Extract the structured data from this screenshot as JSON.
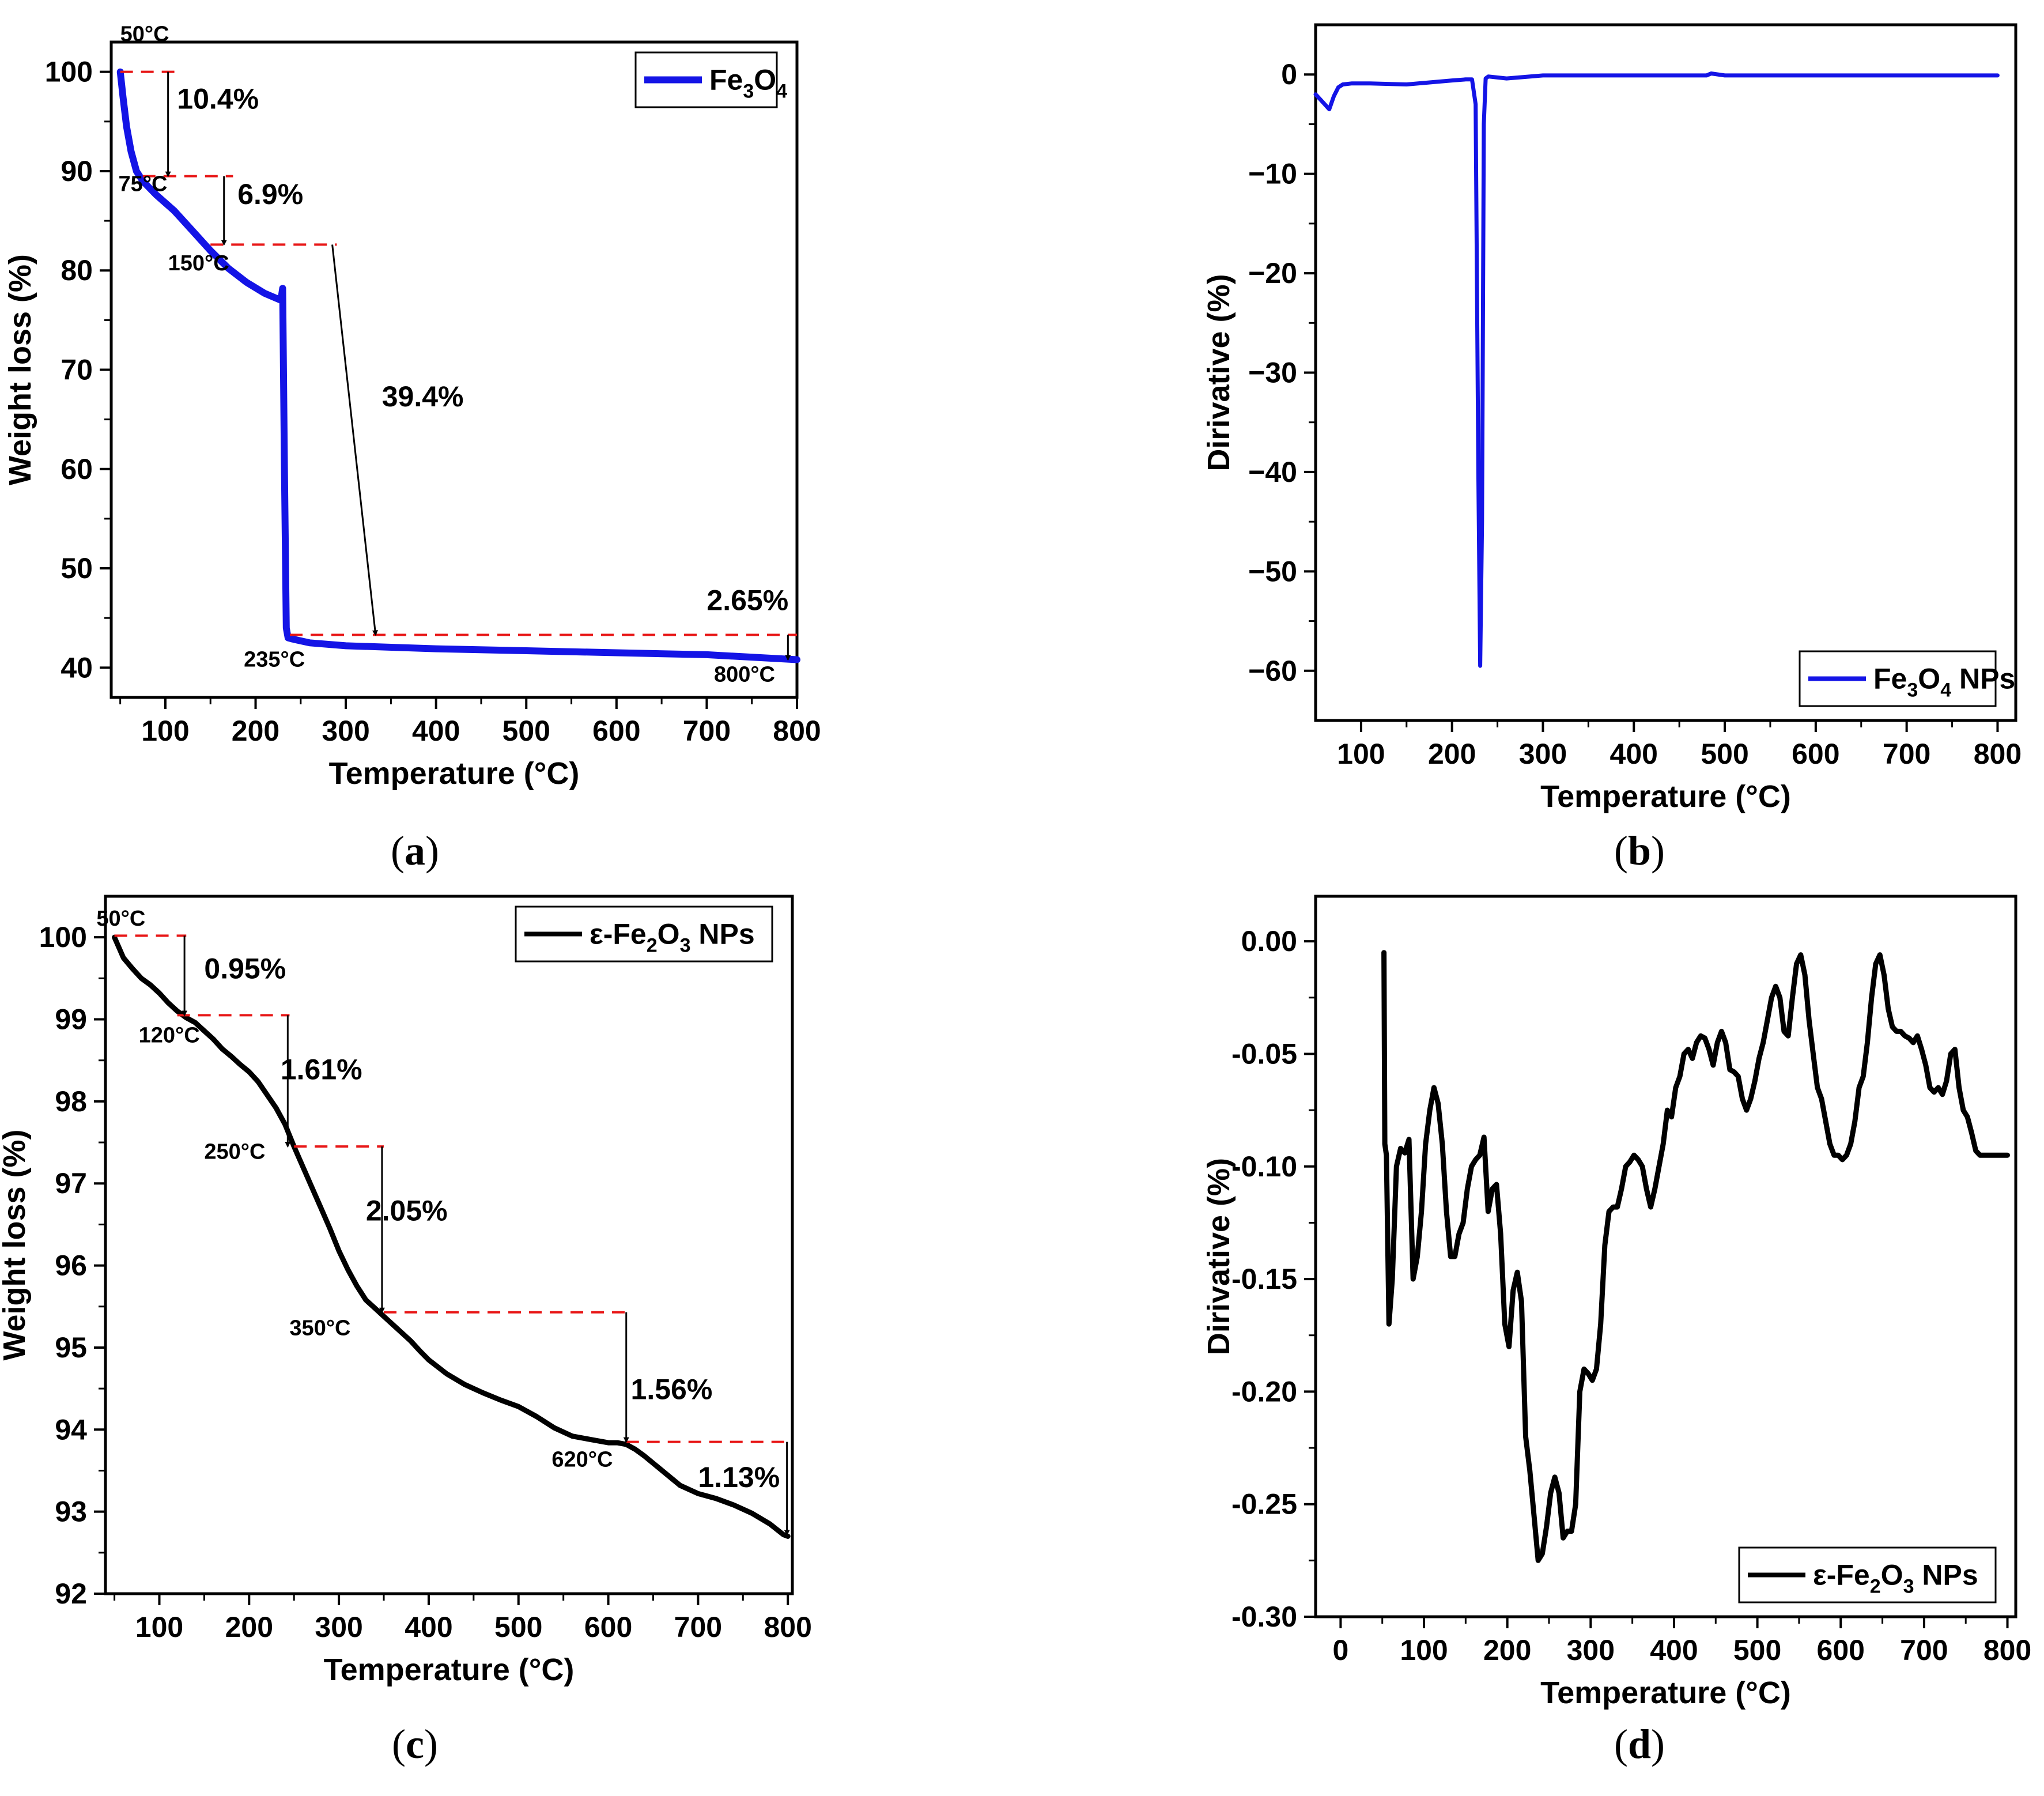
{
  "chart_data": [
    {
      "panel": "a",
      "type": "line",
      "caption": "(a)",
      "xlabel": "Temperature (°C)",
      "ylabel": "Weight loss (%)",
      "xlim": [
        40,
        800
      ],
      "ylim": [
        37,
        103
      ],
      "xticks": [
        100,
        200,
        300,
        400,
        500,
        600,
        700,
        800
      ],
      "yticks": [
        40,
        50,
        60,
        70,
        80,
        90,
        100
      ],
      "legend": {
        "position": "top-right",
        "text": "Fe3O4",
        "parts": [
          [
            "Fe",
            ""
          ],
          [
            "3",
            "sub"
          ],
          [
            "O",
            ""
          ],
          [
            "4",
            "sub"
          ]
        ]
      },
      "color": "#1414e6",
      "series": [
        {
          "name": "Fe3O4",
          "x": [
            50,
            53,
            57,
            62,
            68,
            75,
            90,
            110,
            130,
            150,
            170,
            190,
            210,
            228,
            230,
            232,
            234,
            236,
            240,
            260,
            300,
            400,
            500,
            600,
            700,
            800
          ],
          "y": [
            100,
            97.5,
            94.5,
            92,
            90,
            89,
            87.6,
            86,
            84,
            82,
            80.2,
            78.8,
            77.7,
            77,
            78.2,
            60,
            44,
            43,
            42.9,
            42.5,
            42.2,
            41.9,
            41.7,
            41.5,
            41.3,
            40.8
          ]
        }
      ],
      "annotations": [
        {
          "text": "50°C",
          "x": 50,
          "y": 103.1
        },
        {
          "text": "75°C",
          "x": 48,
          "y": 88
        },
        {
          "text": "150°C",
          "x": 103,
          "y": 80
        },
        {
          "text": "235°C",
          "x": 187,
          "y": 40.1
        },
        {
          "text": "800°C",
          "x": 708,
          "y": 38.6
        },
        {
          "text": "10.4%",
          "x": 113,
          "y": 96.3
        },
        {
          "text": "6.9%",
          "x": 180,
          "y": 86.7
        },
        {
          "text": "39.4%",
          "x": 340,
          "y": 66.3
        },
        {
          "text": "2.65%",
          "x": 700,
          "y": 45.8
        }
      ],
      "dashes": [
        {
          "x1": 50,
          "x2": 110,
          "y": 100
        },
        {
          "x1": 75,
          "x2": 175,
          "y": 89.5
        },
        {
          "x1": 150,
          "x2": 290,
          "y": 82.6
        },
        {
          "x1": 238,
          "x2": 800,
          "y": 43.3
        }
      ],
      "arrows": [
        {
          "x1": 103,
          "y1": 100,
          "x2": 103,
          "y2": 89.5
        },
        {
          "x1": 165,
          "y1": 89.5,
          "x2": 165,
          "y2": 82.6
        },
        {
          "x1": 285,
          "y1": 82.6,
          "x2": 333,
          "y2": 43.3
        },
        {
          "x1": 790,
          "y1": 43.3,
          "x2": 790,
          "y2": 40.8
        }
      ]
    },
    {
      "panel": "b",
      "type": "line",
      "caption": "(b)",
      "xlabel": "Temperature (°C)",
      "ylabel": "Dirivative (%)",
      "xlim": [
        50,
        820
      ],
      "ylim": [
        -65,
        5
      ],
      "xticks": [
        100,
        200,
        300,
        400,
        500,
        600,
        700,
        800
      ],
      "yticks": [
        0,
        -10,
        -20,
        -30,
        -40,
        -50,
        -60
      ],
      "legend": {
        "position": "bottom-right",
        "text": "Fe3O4 NPs",
        "parts": [
          [
            "Fe",
            ""
          ],
          [
            "3",
            "sub"
          ],
          [
            "O",
            ""
          ],
          [
            "4",
            "sub"
          ],
          [
            " NPs",
            ""
          ]
        ]
      },
      "color": "#1414e6",
      "series": [
        {
          "name": "Fe3O4 NPs",
          "x": [
            50,
            55,
            60,
            65,
            70,
            75,
            80,
            90,
            110,
            150,
            200,
            215,
            222,
            226,
            229,
            231,
            233,
            235,
            237,
            240,
            260,
            300,
            400,
            480,
            485,
            500,
            600,
            700,
            800
          ],
          "y": [
            -2,
            -2.5,
            -3,
            -3.5,
            -2.2,
            -1.3,
            -1.0,
            -0.9,
            -0.9,
            -1.0,
            -0.6,
            -0.5,
            -0.5,
            -3,
            -40,
            -59.5,
            -45,
            -5,
            -0.4,
            -0.2,
            -0.4,
            -0.1,
            -0.1,
            -0.1,
            0.1,
            -0.1,
            -0.1,
            -0.1,
            -0.1
          ]
        }
      ]
    },
    {
      "panel": "c",
      "type": "line",
      "caption": "(c)",
      "xlabel": "Temperature (°C)",
      "ylabel": "Weight loss (%)",
      "xlim": [
        40,
        805
      ],
      "ylim": [
        92,
        100.5
      ],
      "xticks": [
        100,
        200,
        300,
        400,
        500,
        600,
        700,
        800
      ],
      "yticks": [
        92,
        93,
        94,
        95,
        96,
        97,
        98,
        99,
        100
      ],
      "legend": {
        "position": "top-right",
        "text": "ε-Fe2O3 NPs",
        "parts": [
          [
            "ε-Fe",
            ""
          ],
          [
            "2",
            "sub"
          ],
          [
            "O",
            ""
          ],
          [
            "3",
            "sub"
          ],
          [
            " NPs",
            ""
          ]
        ]
      },
      "color": "#000000",
      "series": [
        {
          "name": "ε-Fe2O3 NPs",
          "x": [
            50,
            60,
            70,
            80,
            90,
            100,
            110,
            120,
            130,
            140,
            150,
            160,
            170,
            180,
            190,
            200,
            210,
            220,
            230,
            240,
            250,
            260,
            270,
            280,
            290,
            300,
            310,
            320,
            330,
            340,
            350,
            360,
            370,
            380,
            390,
            400,
            420,
            440,
            460,
            480,
            500,
            520,
            540,
            560,
            580,
            600,
            610,
            620,
            630,
            640,
            660,
            680,
            700,
            720,
            740,
            760,
            780,
            795,
            800
          ],
          "y": [
            100,
            99.75,
            99.62,
            99.5,
            99.42,
            99.32,
            99.2,
            99.1,
            99.02,
            98.96,
            98.86,
            98.76,
            98.64,
            98.55,
            98.45,
            98.36,
            98.24,
            98.08,
            97.92,
            97.72,
            97.45,
            97.2,
            96.95,
            96.7,
            96.45,
            96.18,
            95.95,
            95.75,
            95.58,
            95.48,
            95.38,
            95.28,
            95.18,
            95.08,
            94.96,
            94.85,
            94.68,
            94.55,
            94.45,
            94.36,
            94.28,
            94.16,
            94.02,
            93.92,
            93.88,
            93.84,
            93.84,
            93.82,
            93.76,
            93.68,
            93.5,
            93.32,
            93.22,
            93.16,
            93.08,
            92.98,
            92.85,
            92.72,
            92.7
          ]
        }
      ],
      "annotations": [
        {
          "text": "50°C",
          "x": 30,
          "y": 100.14
        },
        {
          "text": "120°C",
          "x": 77,
          "y": 98.72
        },
        {
          "text": "250°C",
          "x": 150,
          "y": 97.3
        },
        {
          "text": "350°C",
          "x": 245,
          "y": 95.15
        },
        {
          "text": "620°C",
          "x": 537,
          "y": 93.55
        },
        {
          "text": "0.95%",
          "x": 150,
          "y": 99.5
        },
        {
          "text": "1.61%",
          "x": 235,
          "y": 98.27
        },
        {
          "text": "2.05%",
          "x": 330,
          "y": 96.55
        },
        {
          "text": "1.56%",
          "x": 625,
          "y": 94.37
        },
        {
          "text": "1.13%",
          "x": 700,
          "y": 93.3
        }
      ],
      "dashes": [
        {
          "x1": 50,
          "x2": 130,
          "y": 100.02
        },
        {
          "x1": 120,
          "x2": 245,
          "y": 99.05
        },
        {
          "x1": 250,
          "x2": 350,
          "y": 97.45
        },
        {
          "x1": 350,
          "x2": 620,
          "y": 95.43
        },
        {
          "x1": 620,
          "x2": 803,
          "y": 93.85
        }
      ],
      "arrows": [
        {
          "x1": 128,
          "y1": 100.02,
          "x2": 128,
          "y2": 99.05
        },
        {
          "x1": 243,
          "y1": 99.05,
          "x2": 243,
          "y2": 97.45
        },
        {
          "x1": 348,
          "y1": 97.45,
          "x2": 348,
          "y2": 95.43
        },
        {
          "x1": 620,
          "y1": 95.43,
          "x2": 620,
          "y2": 93.85
        },
        {
          "x1": 799,
          "y1": 93.85,
          "x2": 799,
          "y2": 92.72
        }
      ]
    },
    {
      "panel": "d",
      "type": "line",
      "caption": "(d)",
      "xlabel": "Temperature (°C)",
      "ylabel": "Dirivative (%)",
      "xlim": [
        -30,
        810
      ],
      "ylim": [
        -0.3,
        0.02
      ],
      "xticks": [
        0,
        100,
        200,
        300,
        400,
        500,
        600,
        700,
        800
      ],
      "yticks": [
        0.0,
        -0.05,
        -0.1,
        -0.15,
        -0.2,
        -0.25,
        -0.3
      ],
      "ytick_labels": [
        "0.00",
        "-0.05",
        "-0.10",
        "-0.15",
        "-0.20",
        "-0.25",
        "-0.30"
      ],
      "legend": {
        "position": "bottom-right",
        "text": "ε-Fe2O3 NPs",
        "parts": [
          [
            "ε-Fe",
            ""
          ],
          [
            "2",
            "sub"
          ],
          [
            "O",
            ""
          ],
          [
            "3",
            "sub"
          ],
          [
            " NPs",
            ""
          ]
        ]
      },
      "color": "#000000",
      "series": [
        {
          "name": "ε-Fe2O3 NPs",
          "x": [
            52,
            53,
            55,
            58,
            62,
            67,
            72,
            77,
            82,
            87,
            92,
            97,
            102,
            107,
            112,
            117,
            122,
            127,
            132,
            137,
            142,
            147,
            152,
            157,
            162,
            167,
            172,
            177,
            182,
            187,
            192,
            197,
            202,
            207,
            212,
            217,
            222,
            227,
            232,
            237,
            242,
            247,
            252,
            257,
            262,
            267,
            272,
            277,
            282,
            287,
            292,
            297,
            302,
            307,
            312,
            317,
            322,
            327,
            332,
            337,
            342,
            347,
            352,
            357,
            362,
            367,
            372,
            377,
            382,
            387,
            392,
            397,
            402,
            407,
            412,
            417,
            422,
            427,
            432,
            437,
            442,
            447,
            452,
            457,
            462,
            467,
            472,
            477,
            482,
            487,
            492,
            497,
            502,
            507,
            512,
            517,
            522,
            527,
            532,
            537,
            542,
            547,
            552,
            557,
            562,
            567,
            572,
            577,
            582,
            587,
            592,
            597,
            602,
            607,
            612,
            617,
            622,
            627,
            632,
            637,
            642,
            647,
            652,
            657,
            662,
            667,
            672,
            677,
            682,
            687,
            692,
            697,
            702,
            707,
            712,
            717,
            722,
            727,
            732,
            737,
            742,
            747,
            752,
            757,
            762,
            767,
            772,
            777,
            782,
            787,
            792,
            797,
            800
          ],
          "y": [
            -0.005,
            -0.09,
            -0.095,
            -0.17,
            -0.15,
            -0.1,
            -0.092,
            -0.094,
            -0.088,
            -0.15,
            -0.14,
            -0.12,
            -0.09,
            -0.075,
            -0.065,
            -0.072,
            -0.09,
            -0.12,
            -0.14,
            -0.14,
            -0.13,
            -0.125,
            -0.11,
            -0.1,
            -0.097,
            -0.095,
            -0.087,
            -0.12,
            -0.11,
            -0.108,
            -0.13,
            -0.17,
            -0.18,
            -0.155,
            -0.147,
            -0.16,
            -0.22,
            -0.235,
            -0.255,
            -0.275,
            -0.272,
            -0.26,
            -0.245,
            -0.238,
            -0.245,
            -0.265,
            -0.262,
            -0.262,
            -0.25,
            -0.2,
            -0.19,
            -0.192,
            -0.195,
            -0.19,
            -0.17,
            -0.135,
            -0.12,
            -0.118,
            -0.118,
            -0.11,
            -0.1,
            -0.098,
            -0.095,
            -0.097,
            -0.1,
            -0.11,
            -0.118,
            -0.11,
            -0.1,
            -0.09,
            -0.075,
            -0.078,
            -0.065,
            -0.06,
            -0.05,
            -0.048,
            -0.052,
            -0.045,
            -0.042,
            -0.043,
            -0.048,
            -0.055,
            -0.045,
            -0.04,
            -0.045,
            -0.057,
            -0.058,
            -0.06,
            -0.07,
            -0.075,
            -0.07,
            -0.062,
            -0.052,
            -0.045,
            -0.035,
            -0.025,
            -0.02,
            -0.025,
            -0.04,
            -0.042,
            -0.025,
            -0.01,
            -0.006,
            -0.015,
            -0.035,
            -0.05,
            -0.065,
            -0.07,
            -0.08,
            -0.09,
            -0.095,
            -0.095,
            -0.097,
            -0.095,
            -0.09,
            -0.08,
            -0.065,
            -0.06,
            -0.045,
            -0.025,
            -0.01,
            -0.006,
            -0.015,
            -0.03,
            -0.038,
            -0.04,
            -0.04,
            -0.042,
            -0.043,
            -0.045,
            -0.042,
            -0.048,
            -0.055,
            -0.065,
            -0.067,
            -0.065,
            -0.068,
            -0.062,
            -0.05,
            -0.048,
            -0.065,
            -0.075,
            -0.078,
            -0.085,
            -0.093,
            -0.095,
            -0.095,
            -0.095,
            -0.095,
            -0.095,
            -0.095,
            -0.095,
            -0.095
          ]
        }
      ]
    }
  ]
}
